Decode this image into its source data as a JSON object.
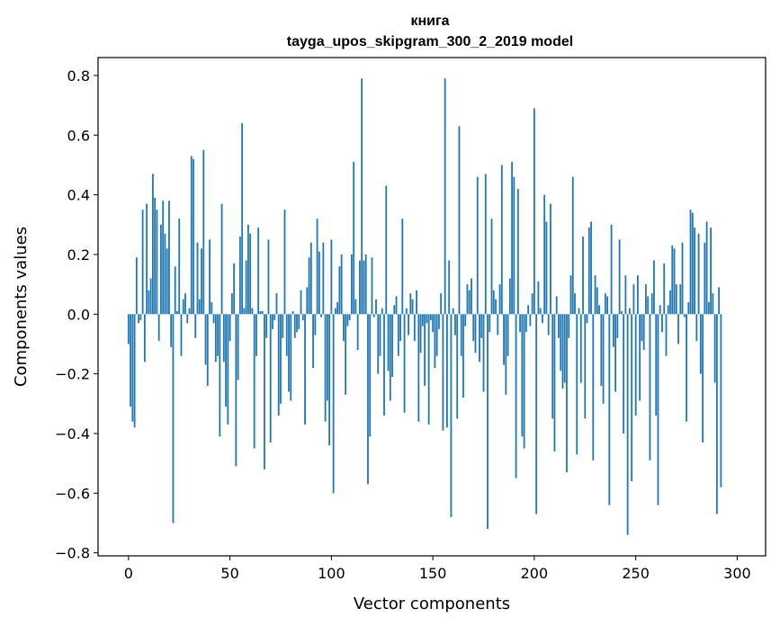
{
  "chart_data": {
    "type": "bar",
    "title": "книга",
    "subtitle": "tayga_upos_skipgram_300_2_2019 model",
    "xlabel": "Vector components",
    "ylabel": "Components values",
    "xlim": [
      -15,
      314
    ],
    "ylim": [
      -0.81,
      0.86
    ],
    "xticks": [
      0,
      50,
      100,
      150,
      200,
      250,
      300
    ],
    "yticks": [
      -0.8,
      -0.6,
      -0.4,
      -0.2,
      0.0,
      0.2,
      0.4,
      0.6,
      0.8
    ],
    "ytick_labels": [
      "−0.8",
      "−0.6",
      "−0.4",
      "−0.2",
      "0.0",
      "0.2",
      "0.4",
      "0.6",
      "0.8"
    ],
    "bar_color": "#1f77b4",
    "values": [
      -0.1,
      -0.31,
      -0.36,
      -0.38,
      0.19,
      -0.03,
      -0.02,
      0.35,
      -0.16,
      0.37,
      0.08,
      0.12,
      0.47,
      0.39,
      0.35,
      -0.09,
      0.3,
      0.38,
      0.27,
      0.22,
      0.38,
      -0.11,
      -0.7,
      0.16,
      0.01,
      0.32,
      -0.14,
      0.05,
      0.07,
      -0.03,
      0.02,
      0.53,
      0.52,
      -0.08,
      0.24,
      0.05,
      0.22,
      0.55,
      -0.17,
      -0.24,
      0.25,
      0.04,
      -0.03,
      -0.16,
      -0.14,
      -0.41,
      0.37,
      -0.16,
      -0.31,
      -0.37,
      -0.09,
      0.07,
      0.17,
      -0.51,
      -0.22,
      0.26,
      0.64,
      0.02,
      0.18,
      0.3,
      0.27,
      0.02,
      -0.45,
      -0.14,
      0.29,
      0.01,
      0.01,
      -0.52,
      -0.08,
      0.25,
      -0.43,
      -0.05,
      -0.02,
      0.07,
      -0.34,
      -0.3,
      -0.08,
      0.35,
      -0.14,
      -0.26,
      -0.29,
      0.01,
      -0.08,
      -0.06,
      -0.05,
      0.08,
      -0.02,
      -0.37,
      0.09,
      0.19,
      0.24,
      -0.18,
      -0.07,
      0.32,
      0.21,
      -0.01,
      0.24,
      -0.36,
      -0.29,
      -0.44,
      0.25,
      -0.6,
      0.02,
      0.04,
      0.16,
      0.2,
      -0.09,
      -0.27,
      -0.04,
      -0.02,
      0.2,
      0.51,
      0.05,
      -0.12,
      0.18,
      0.79,
      0.18,
      0.2,
      -0.57,
      -0.41,
      0.19,
      -0.01,
      0.05,
      -0.2,
      -0.14,
      0.02,
      -0.34,
      0.43,
      -0.19,
      -0.29,
      -0.21,
      0.03,
      0.06,
      -0.14,
      -0.09,
      0.32,
      -0.33,
      0.02,
      -0.07,
      0.07,
      0.05,
      -0.09,
      0.08,
      -0.36,
      -0.13,
      -0.04,
      -0.24,
      -0.03,
      -0.37,
      -0.02,
      -0.06,
      -0.18,
      -0.14,
      -0.05,
      0.07,
      -0.39,
      0.79,
      -0.38,
      0.18,
      -0.68,
      0.02,
      -0.07,
      -0.35,
      0.63,
      -0.14,
      -0.28,
      -0.04,
      0.1,
      0.08,
      0.12,
      -0.09,
      -0.13,
      0.46,
      -0.16,
      -0.08,
      -0.26,
      0.47,
      -0.72,
      -0.06,
      0.32,
      0.08,
      0.05,
      -0.07,
      0.1,
      0.5,
      -0.17,
      -0.27,
      -0.14,
      0.12,
      0.51,
      0.46,
      -0.55,
      0.42,
      -0.06,
      -0.41,
      -0.45,
      -0.06,
      0.03,
      -0.04,
      0.07,
      0.69,
      -0.67,
      0.11,
      0.02,
      -0.03,
      0.4,
      0.31,
      -0.07,
      0.37,
      -0.35,
      -0.46,
      0.06,
      -0.08,
      -0.19,
      -0.25,
      -0.23,
      -0.53,
      -0.08,
      0.13,
      0.46,
      0.07,
      -0.47,
      0.02,
      -0.23,
      0.26,
      -0.35,
      -0.03,
      0.29,
      0.31,
      -0.49,
      0.13,
      0.09,
      0.03,
      -0.24,
      -0.3,
      0.07,
      0.06,
      -0.64,
      0.3,
      -0.11,
      -0.26,
      -0.08,
      0.25,
      0.01,
      -0.4,
      0.13,
      -0.74,
      0.02,
      -0.56,
      0.1,
      -0.34,
      0.13,
      -0.29,
      -0.09,
      -0.12,
      0.1,
      0.06,
      -0.49,
      0.07,
      0.18,
      -0.34,
      -0.64,
      0.03,
      -0.06,
      0.17,
      -0.14,
      0.03,
      0.08,
      0.23,
      0.22,
      0.1,
      -0.1,
      0.1,
      0.24,
      -0.01,
      -0.36,
      0.04,
      0.35,
      0.34,
      0.29,
      -0.09,
      0.27,
      -0.2,
      -0.43,
      0.24,
      0.31,
      0.04,
      0.29,
      0.07,
      -0.23,
      -0.67,
      0.09,
      -0.58
    ]
  }
}
